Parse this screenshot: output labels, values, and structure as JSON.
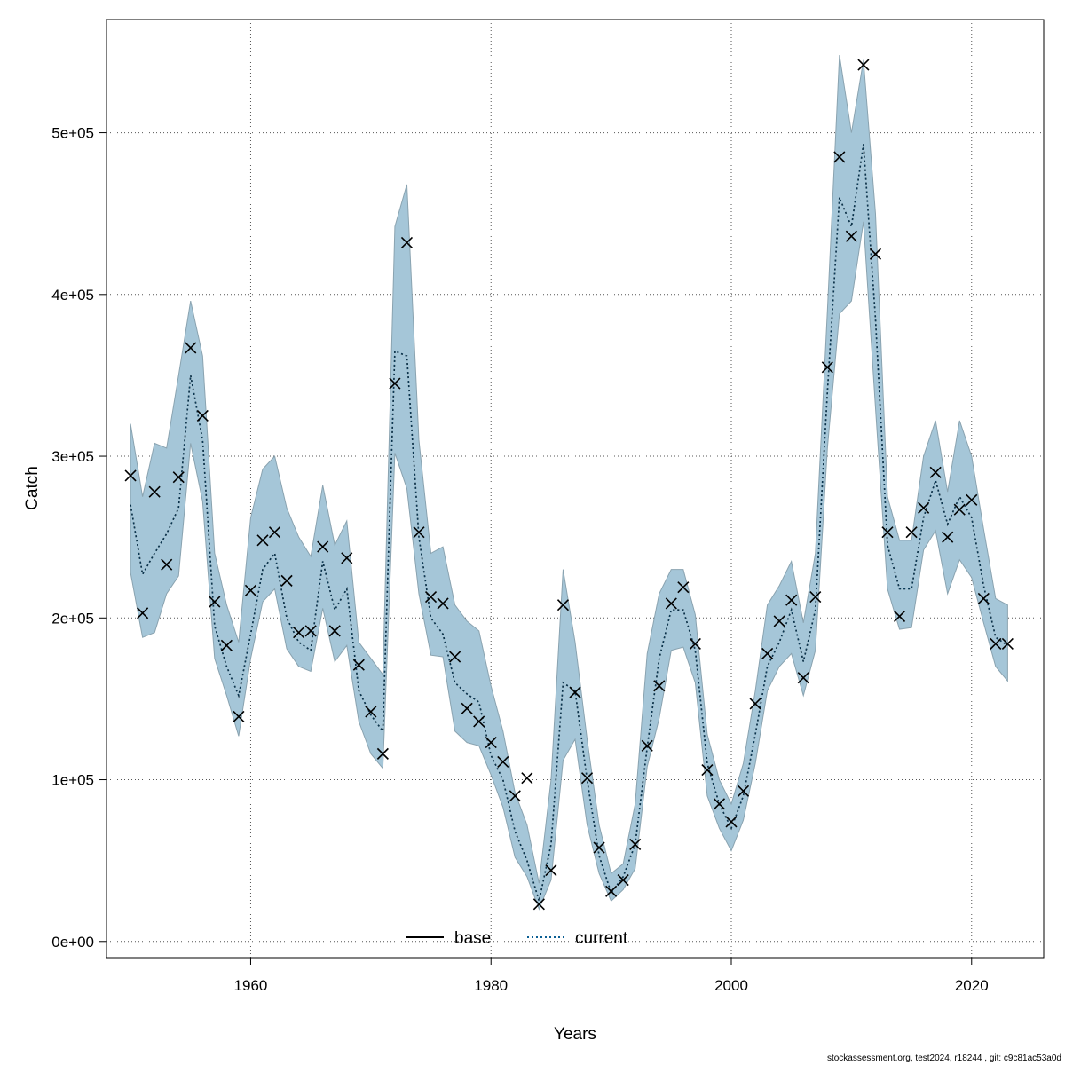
{
  "chart_data": {
    "type": "line",
    "xlabel": "Years",
    "ylabel": "Catch",
    "xlim": [
      1948,
      2026
    ],
    "ylim": [
      -10000,
      570000
    ],
    "xticks": [
      1960,
      1980,
      2000,
      2020
    ],
    "yticks": [
      0,
      100000,
      200000,
      300000,
      400000,
      500000
    ],
    "ytick_labels": [
      "0e+00",
      "1e+05",
      "2e+05",
      "3e+05",
      "4e+05",
      "5e+05"
    ],
    "grid": true,
    "legend_position": "bottom-center",
    "legend": [
      {
        "name": "base",
        "style": "solid",
        "color": "#000000"
      },
      {
        "name": "current",
        "style": "dotted",
        "color": "#0b5f93"
      }
    ],
    "band_color": "#a5c6d8",
    "years": [
      1950,
      1951,
      1952,
      1953,
      1954,
      1955,
      1956,
      1957,
      1958,
      1959,
      1960,
      1961,
      1962,
      1963,
      1964,
      1965,
      1966,
      1967,
      1968,
      1969,
      1970,
      1971,
      1972,
      1973,
      1974,
      1975,
      1976,
      1977,
      1978,
      1979,
      1980,
      1981,
      1982,
      1983,
      1984,
      1985,
      1986,
      1987,
      1988,
      1989,
      1990,
      1991,
      1992,
      1993,
      1994,
      1995,
      1996,
      1997,
      1998,
      1999,
      2000,
      2001,
      2002,
      2003,
      2004,
      2005,
      2006,
      2007,
      2008,
      2009,
      2010,
      2011,
      2012,
      2013,
      2014,
      2015,
      2016,
      2017,
      2018,
      2019,
      2020,
      2021,
      2022,
      2023
    ],
    "series": [
      {
        "name": "current",
        "type": "line",
        "values": [
          270000,
          227000,
          240000,
          252000,
          268000,
          350000,
          310000,
          195000,
          170000,
          152000,
          190000,
          230000,
          240000,
          200000,
          185000,
          180000,
          235000,
          205000,
          218000,
          155000,
          140000,
          130000,
          365000,
          362000,
          250000,
          200000,
          190000,
          160000,
          153000,
          148000,
          115000,
          100000,
          68000,
          50000,
          25000,
          60000,
          160000,
          155000,
          100000,
          53000,
          30000,
          40000,
          60000,
          120000,
          175000,
          205000,
          205000,
          180000,
          110000,
          85000,
          70000,
          90000,
          128000,
          170000,
          185000,
          205000,
          173000,
          205000,
          340000,
          460000,
          442000,
          493000,
          385000,
          245000,
          218000,
          218000,
          262000,
          285000,
          258000,
          275000,
          262000,
          220000,
          188000,
          183000
        ]
      },
      {
        "name": "observed catch",
        "type": "scatter",
        "marker": "x",
        "values": [
          288000,
          203000,
          278000,
          233000,
          287000,
          367000,
          325000,
          210000,
          183000,
          139000,
          217000,
          248000,
          253000,
          223000,
          191000,
          192000,
          244000,
          192000,
          237000,
          171000,
          142000,
          116000,
          345000,
          432000,
          253000,
          213000,
          209000,
          176000,
          144000,
          136000,
          123000,
          111000,
          90000,
          101000,
          23000,
          44000,
          208000,
          154000,
          101000,
          58000,
          31000,
          38000,
          60000,
          121000,
          158000,
          209000,
          219000,
          184000,
          106000,
          85000,
          74000,
          93000,
          147000,
          178000,
          198000,
          211000,
          163000,
          213000,
          355000,
          485000,
          436000,
          542000,
          425000,
          253000,
          201000,
          253000,
          268000,
          290000,
          250000,
          267000,
          273000,
          212000,
          184000,
          184000
        ]
      },
      {
        "name": "upper band",
        "type": "area-bound",
        "values": [
          320000,
          275000,
          308000,
          305000,
          350000,
          396000,
          362000,
          240000,
          208000,
          185000,
          262000,
          292000,
          300000,
          268000,
          250000,
          238000,
          282000,
          245000,
          260000,
          185000,
          175000,
          165000,
          442000,
          468000,
          310000,
          240000,
          244000,
          208000,
          198000,
          192000,
          158000,
          130000,
          92000,
          72000,
          36000,
          100000,
          230000,
          185000,
          125000,
          72000,
          42000,
          48000,
          85000,
          178000,
          215000,
          230000,
          230000,
          202000,
          128000,
          100000,
          85000,
          110000,
          155000,
          208000,
          220000,
          235000,
          197000,
          240000,
          390000,
          548000,
          500000,
          545000,
          450000,
          275000,
          248000,
          248000,
          300000,
          322000,
          278000,
          322000,
          300000,
          255000,
          212000,
          208000
        ]
      },
      {
        "name": "lower band",
        "type": "area-bound",
        "values": [
          228000,
          188000,
          191000,
          215000,
          226000,
          308000,
          272000,
          175000,
          152000,
          127000,
          175000,
          210000,
          218000,
          181000,
          170000,
          167000,
          206000,
          173000,
          183000,
          136000,
          116000,
          107000,
          302000,
          280000,
          215000,
          177000,
          176000,
          130000,
          123000,
          121000,
          103000,
          83000,
          52000,
          40000,
          20000,
          38000,
          112000,
          125000,
          72000,
          42000,
          25000,
          32000,
          45000,
          108000,
          138000,
          180000,
          182000,
          160000,
          90000,
          70000,
          56000,
          75000,
          110000,
          155000,
          170000,
          178000,
          152000,
          180000,
          305000,
          388000,
          396000,
          445000,
          330000,
          218000,
          193000,
          194000,
          242000,
          254000,
          215000,
          236000,
          225000,
          197000,
          170000,
          161000
        ]
      }
    ]
  },
  "footer": "stockassessment.org, test2024, r18244 , git: c9c81ac53a0d"
}
